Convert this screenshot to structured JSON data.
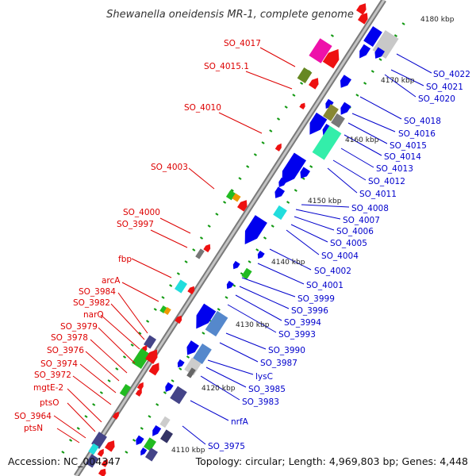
{
  "header": {
    "title": "Shewanella oneidensis MR-1, complete genome"
  },
  "footer": {
    "accession": "Accession: NC_004347",
    "topology": "Topology: circular; Length: 4,969,803 bp; Genes: 4,448"
  },
  "colors": {
    "forward_label": "#dd0000",
    "reverse_label": "#0000cc",
    "backbone": "#9a9a9a",
    "tick": "#119911"
  },
  "scale_ticks": [
    "4180 kbp",
    "4170 kbp",
    "4160 kbp",
    "4150 kbp",
    "4140 kbp",
    "4130 kbp",
    "4120 kbp",
    "4110 kbp"
  ],
  "left_genes": [
    "SO_4017",
    "SO_4015.1",
    "SO_4010",
    "SO_4003",
    "SO_4000",
    "SO_3997",
    "fbp",
    "arcA",
    "SO_3984",
    "SO_3982",
    "narQ",
    "SO_3979",
    "SO_3978",
    "SO_3976",
    "SO_3974",
    "SO_3972",
    "mgtE-2",
    "ptsO",
    "SO_3964",
    "ptsN"
  ],
  "right_genes": [
    "SO_4022",
    "SO_4021",
    "SO_4020",
    "SO_4018",
    "SO_4016",
    "SO_4015",
    "SO_4014",
    "SO_4013",
    "SO_4012",
    "SO_4011",
    "SO_4008",
    "SO_4007",
    "SO_4006",
    "SO_4005",
    "SO_4004",
    "SO_4002",
    "SO_4001",
    "SO_3999",
    "SO_3996",
    "SO_3994",
    "SO_3993",
    "SO_3990",
    "SO_3987",
    "lysC",
    "SO_3985",
    "SO_3983",
    "nrfA",
    "SO_3975"
  ]
}
